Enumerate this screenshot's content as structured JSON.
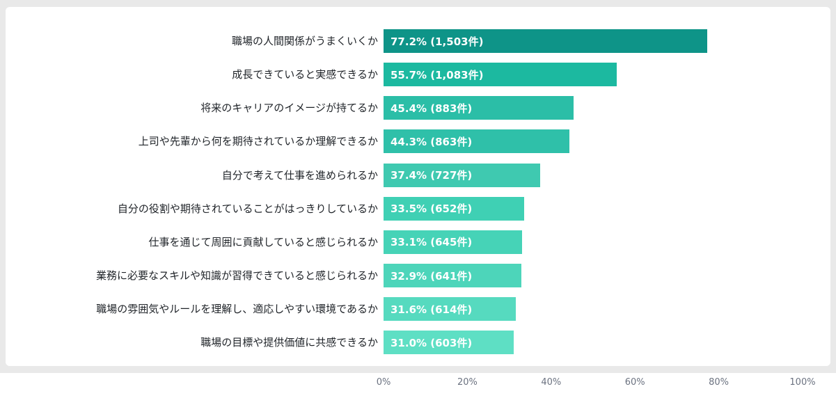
{
  "page": {
    "background_color": "#e9e9e9",
    "card_background_color": "#ffffff"
  },
  "chart_data": {
    "type": "bar",
    "orientation": "horizontal",
    "title": "",
    "xlabel": "",
    "ylabel": "",
    "xlim": [
      0,
      100
    ],
    "grid": false,
    "legend": false,
    "categories": [
      "職場の人間関係がうまくいくか",
      "成長できていると実感できるか",
      "将来のキャリアのイメージが持てるか",
      "上司や先輩から何を期待されているか理解できるか",
      "自分で考えて仕事を進められるか",
      "自分の役割や期待されていることがはっきりしているか",
      "仕事を通じて周囲に貢献していると感じられるか",
      "業務に必要なスキルや知識が習得できていると感じられるか",
      "職場の雰囲気やルールを理解し、適応しやすい環境であるか",
      "職場の目標や提供価値に共感できるか"
    ],
    "values": [
      77.2,
      55.7,
      45.4,
      44.3,
      37.4,
      33.5,
      33.1,
      32.9,
      31.6,
      31.0
    ],
    "counts": [
      1503,
      1083,
      883,
      863,
      727,
      652,
      645,
      641,
      614,
      603
    ],
    "bar_labels": [
      "77.2% (1,503件)",
      "55.7% (1,083件)",
      "45.4% (883件)",
      "44.3% (863件)",
      "37.4% (727件)",
      "33.5% (652件)",
      "33.1% (645件)",
      "32.9% (641件)",
      "31.6% (614件)",
      "31.0% (603件)"
    ],
    "bar_colors": [
      "#0E9488",
      "#1CB9A0",
      "#2BBEA7",
      "#2FC0A9",
      "#3FC9B0",
      "#3FD0B4",
      "#46D3B7",
      "#4DD5BA",
      "#56DABF",
      "#5EDFC4"
    ],
    "x_ticks": [
      "0%",
      "20%",
      "40%",
      "60%",
      "80%",
      "100%"
    ]
  }
}
